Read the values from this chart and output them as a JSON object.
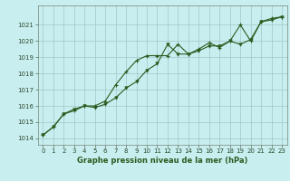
{
  "title": "Graphe pression niveau de la mer (hPa)",
  "background_color": "#c8eef0",
  "grid_color": "#a0c8c8",
  "line_color": "#2d5a1e",
  "x_values": [
    0,
    1,
    2,
    3,
    4,
    5,
    6,
    7,
    8,
    9,
    10,
    11,
    12,
    13,
    14,
    15,
    16,
    17,
    18,
    19,
    20,
    21,
    22,
    23
  ],
  "line1_plus": [
    1014.2,
    1014.7,
    1015.5,
    1015.7,
    1016.0,
    1016.0,
    1016.3,
    1017.3,
    1018.1,
    1018.8,
    1019.1,
    1019.1,
    1019.1,
    1019.8,
    1019.2,
    1019.5,
    1019.9,
    1019.6,
    1020.0,
    1021.0,
    1020.0,
    1021.2,
    1021.4,
    1021.5
  ],
  "line2_tri": [
    1014.2,
    1014.7,
    1015.5,
    1015.8,
    1016.0,
    1015.9,
    1016.1,
    1016.5,
    1017.1,
    1017.5,
    1018.2,
    1018.6,
    1019.8,
    1019.2,
    1019.2,
    1019.4,
    1019.7,
    1019.7,
    1020.0,
    1019.8,
    1020.1,
    1021.2,
    1021.3,
    1021.5
  ],
  "ylim": [
    1013.6,
    1022.2
  ],
  "xlim": [
    -0.5,
    23.5
  ],
  "yticks": [
    1014,
    1015,
    1016,
    1017,
    1018,
    1019,
    1020,
    1021
  ],
  "xticks": [
    0,
    1,
    2,
    3,
    4,
    5,
    6,
    7,
    8,
    9,
    10,
    11,
    12,
    13,
    14,
    15,
    16,
    17,
    18,
    19,
    20,
    21,
    22,
    23
  ],
  "tick_fontsize": 5.0,
  "title_fontsize": 6.0,
  "line_color2": "#2d5a1e",
  "marker_size1": 3.0,
  "marker_size2": 2.5,
  "line_width": 0.8
}
